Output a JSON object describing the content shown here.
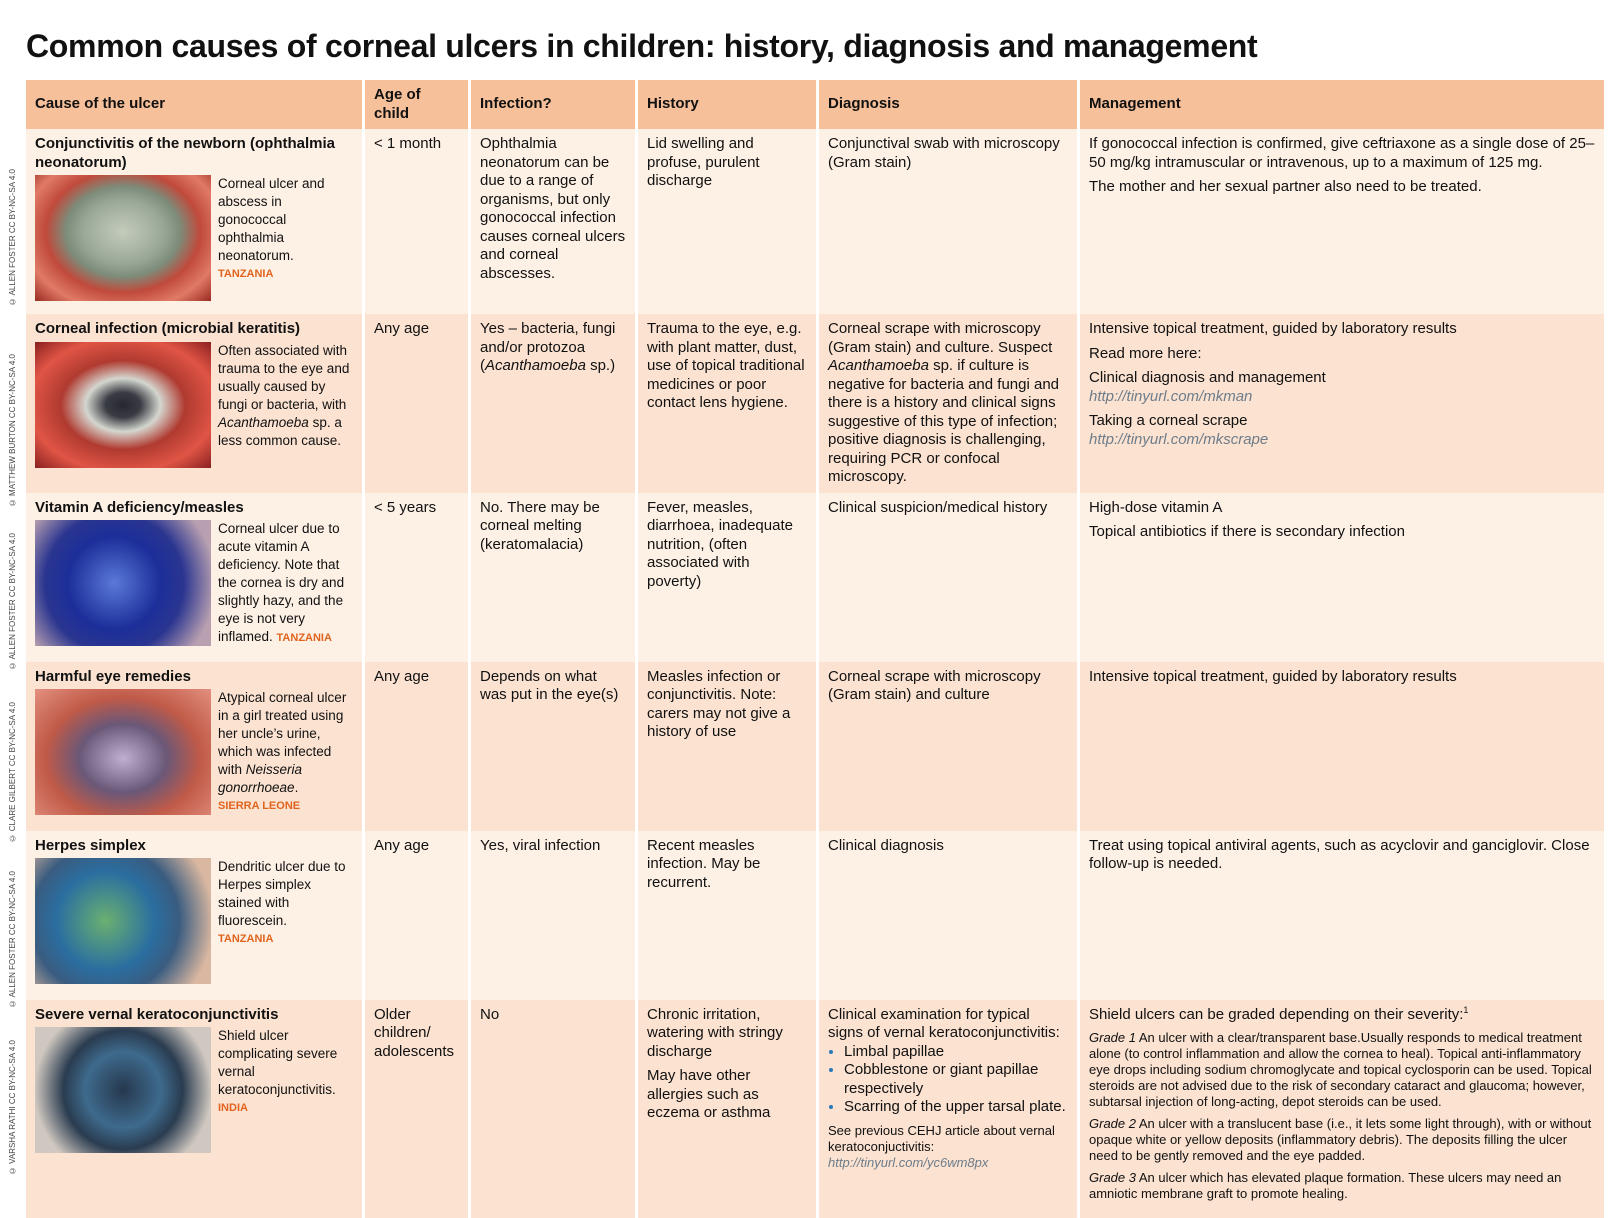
{
  "title": "Common causes of corneal ulcers in children: history, diagnosis and management",
  "table": {
    "headers": [
      "Cause of the ulcer",
      "Age of child",
      "Infection?",
      "History",
      "Diagnosis",
      "Management"
    ],
    "rows": [
      {
        "cause": "Conjunctivitis of the newborn (ophthalmia neonatorum)",
        "caption": [
          "Corneal ulcer and abscess in gonococcal ophthalmia neonatorum.",
          {
            "text": "TANZANIA",
            "style": "location"
          }
        ],
        "credit": "© ALLEN FOSTER CC BY-NC-SA 4.0",
        "age": "< 1 month",
        "infection": [
          "Ophthalmia neonatorum can be due to a range of organisms, but only gonococcal infection causes corneal ulcers and corneal abscesses."
        ],
        "history": [
          "Lid swelling and profuse, purulent discharge"
        ],
        "diagnosis": [
          "Conjunctival swab with microscopy (Gram stain)"
        ],
        "management": [
          "If gonococcal infection is confirmed, give ceftriaxone as a single dose of 25–50 mg/kg intramuscular or intravenous, up to a maximum of 125 mg.",
          "The mother and her sexual partner also need to be treated."
        ]
      },
      {
        "cause": "Corneal infection (microbial keratitis)",
        "caption": [
          [
            "Often associated with trauma to the eye and usually caused by fungi or bacteria, with ",
            {
              "text": "Acanthamoeba",
              "style": "italic"
            },
            " sp. a less common cause."
          ]
        ],
        "credit": "© MATTHEW BURTON CC BY-NC-SA 4.0",
        "age": "Any age",
        "infection": [
          [
            "Yes – bacteria, fungi and/or protozoa (",
            {
              "text": "Acanthamoeba",
              "style": "italic"
            },
            " sp.)"
          ]
        ],
        "history": [
          "Trauma to the eye, e.g. with plant matter, dust, use of topical traditional medicines or poor contact lens hygiene."
        ],
        "diagnosis": [
          [
            "Corneal scrape with microscopy (Gram stain) and culture. Suspect ",
            {
              "text": "Acanthamoeba",
              "style": "italic"
            },
            " sp. if culture is negative for bacteria and fungi and there is a history and clinical signs suggestive of this type of infection; positive diagnosis is challenging, requiring PCR or confocal microscopy."
          ]
        ],
        "management": [
          "Intensive topical treatment, guided by laboratory results",
          "Read more here:",
          "Clinical diagnosis and management",
          {
            "text": "http://tinyurl.com/mkman",
            "style": "link"
          },
          "Taking a corneal scrape",
          {
            "text": "http://tinyurl.com/mkscrape",
            "style": "link"
          }
        ]
      },
      {
        "cause": "Vitamin A deficiency/measles",
        "caption": [
          [
            "Corneal ulcer due to acute vitamin A deficiency. Note that the cornea is dry and slightly hazy, and the eye is not very inflamed. ",
            {
              "text": "TANZANIA",
              "style": "location"
            }
          ]
        ],
        "credit": "© ALLEN FOSTER CC BY-NC-SA 4.0",
        "age": "< 5 years",
        "infection": [
          "No. There may be corneal melting (keratomalacia)"
        ],
        "history": [
          "Fever, measles, diarrhoea, inadequate nutrition, (often associated with poverty)"
        ],
        "diagnosis": [
          "Clinical suspicion/medical history"
        ],
        "management": [
          "High-dose vitamin A",
          "Topical antibiotics if there is secondary infection"
        ]
      },
      {
        "cause": "Harmful eye remedies",
        "caption": [
          [
            "Atypical corneal ulcer in a girl treated using her uncle’s urine, which was infected with ",
            {
              "text": "Neisseria gonorrhoeae",
              "style": "italic"
            },
            "."
          ],
          {
            "text": "SIERRA LEONE",
            "style": "location"
          }
        ],
        "credit": "© CLARE GILBERT CC BY-NC-SA 4.0",
        "age": "Any age",
        "infection": [
          "Depends on what was put in the eye(s)"
        ],
        "history": [
          "Measles infection or conjunctivitis. Note: carers may not give a history of use"
        ],
        "diagnosis": [
          "Corneal scrape with microscopy (Gram stain) and culture"
        ],
        "management": [
          "Intensive topical treatment, guided by laboratory results"
        ]
      },
      {
        "cause": "Herpes simplex",
        "caption": [
          "Dendritic ulcer due to Herpes simplex stained with fluorescein.",
          {
            "text": "TANZANIA",
            "style": "location"
          }
        ],
        "credit": "© ALLEN FOSTER CC BY-NC-SA 4.0",
        "age": "Any age",
        "infection": [
          "Yes, viral infection"
        ],
        "history": [
          "Recent measles infection. May be recurrent."
        ],
        "diagnosis": [
          "Clinical diagnosis"
        ],
        "management": [
          "Treat using topical antiviral agents, such as acyclovir and ganciglovir. Close follow-up is needed."
        ]
      },
      {
        "cause": "Severe vernal keratoconjunctivitis",
        "caption": [
          "Shield ulcer complicating severe vernal keratoconjunctivitis.",
          {
            "text": "INDIA",
            "style": "location"
          }
        ],
        "credit": "© VARSHA RATHI CC BY-NC-SA 4.0",
        "age": "Older children/ adolescents",
        "infection": [
          "No"
        ],
        "history": [
          "Chronic irritation, watering with stringy discharge",
          "May have other allergies such as eczema or asthma"
        ],
        "diagnosis": [
          "Clinical examination for typical signs of vernal keratoconjunctivitis:",
          {
            "bullets": [
              "Limbal papillae",
              "Cobblestone or giant papillae respectively",
              "Scarring of the upper tarsal plate."
            ]
          },
          {
            "text": "See previous CEHJ article about vernal keratoconjuctivitis:",
            "style": "note"
          },
          {
            "text": "http://tinyurl.com/yc6wm8px",
            "style": "link"
          }
        ],
        "management": [
          [
            "Shield ulcers can be graded depending on their severity:",
            {
              "text": "1",
              "style": "sup"
            }
          ],
          {
            "segments": [
              {
                "text": "Grade 1",
                "style": "italic"
              },
              " An ulcer with a clear/transparent base.Usually responds to medical treatment alone (to control inflammation and allow the cornea to heal). Topical anti-inflammatory eye drops including sodium chromoglycate and topical cyclosporin can be used. Topical steroids are not advised due to the risk of secondary cataract and glaucoma;  however, subtarsal injection of long-acting, depot steroids can be used."
            ],
            "style": "note"
          },
          {
            "segments": [
              {
                "text": "Grade 2",
                "style": "italic"
              },
              " An ulcer with a translucent base (i.e., it lets some light through), with or without opaque white or yellow deposits (inflammatory debris). The deposits filling the ulcer need to be gently removed and the eye padded."
            ],
            "style": "note"
          },
          {
            "segments": [
              {
                "text": "Grade 3",
                "style": "italic"
              },
              " An ulcer which has elevated plaque formation. These ulcers may need an amniotic membrane graft to promote healing."
            ],
            "style": "note"
          }
        ]
      }
    ]
  }
}
